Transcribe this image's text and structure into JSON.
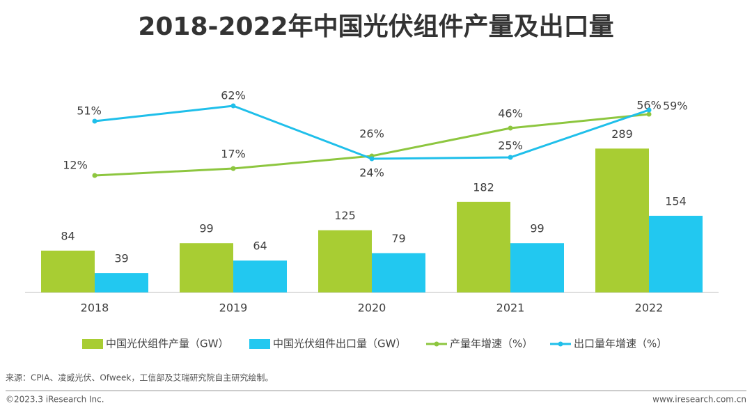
{
  "chart_data": {
    "type": "bar-line",
    "title": "2018-2022年中国光伏组件产量及出口量",
    "categories": [
      "2018",
      "2019",
      "2020",
      "2021",
      "2022"
    ],
    "ylim": [
      0,
      400
    ],
    "y2lim": [
      -72,
      71
    ],
    "series": [
      {
        "name": "中国光伏组件产量（GW）",
        "type": "bar",
        "color": "#a8cd33",
        "values": [
          84,
          99,
          125,
          182,
          289
        ]
      },
      {
        "name": "中国光伏组件出口量（GW）",
        "type": "bar",
        "color": "#22c8f0",
        "values": [
          39,
          64,
          79,
          99,
          154
        ]
      },
      {
        "name": "产量年增速（%）",
        "type": "line",
        "axis": "y2",
        "color": "#8dc63f",
        "values": [
          12,
          17,
          26,
          46,
          56
        ],
        "value_labels": [
          "12%",
          "17%",
          "26%",
          "46%",
          "56%"
        ]
      },
      {
        "name": "出口量年增速（%）",
        "type": "line",
        "axis": "y2",
        "color": "#1fbfea",
        "values": [
          51,
          62,
          24,
          25,
          59
        ],
        "value_labels": [
          "51%",
          "62%",
          "24%",
          "25%",
          "59%"
        ]
      }
    ],
    "source": "来源：CPIA、凌威光伏、Ofweek，工信部及艾瑞研究院自主研究绘制。",
    "footer_left": "©2023.3 iResearch Inc.",
    "footer_right": "www.iresearch.com.cn"
  }
}
